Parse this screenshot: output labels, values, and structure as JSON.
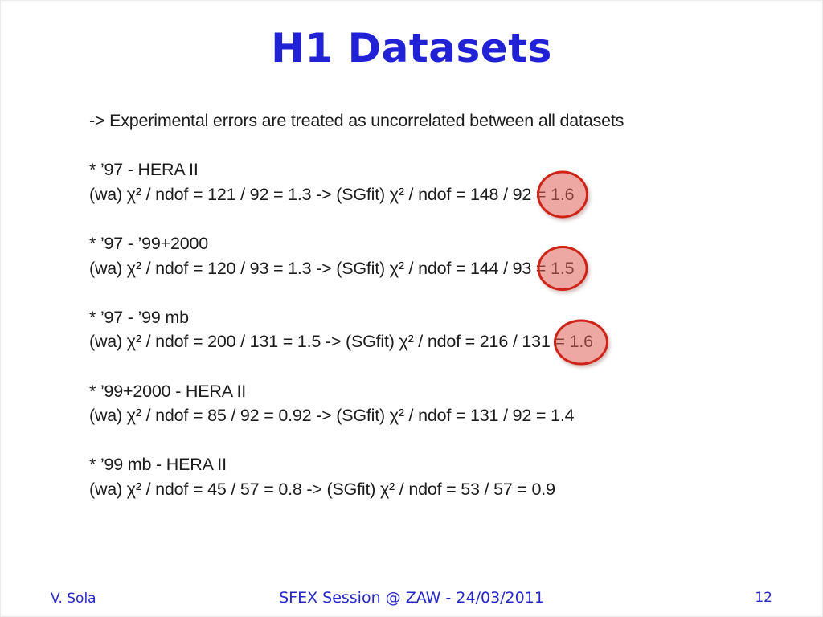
{
  "slide": {
    "title": "H1 Datasets",
    "intro": "-> Experimental errors are treated as uncorrelated between all datasets",
    "blocks": [
      {
        "heading": "* ’97 - HERA II",
        "formula_prefix": "(wa) χ² / ndof = 121 / 92 = 1.3 -> (SGfit) χ² / ndof = 148 / 92 = ",
        "result": "1.6",
        "circled": true
      },
      {
        "heading": "* ’97 - ’99+2000",
        "formula_prefix": "(wa) χ² / ndof = 120 / 93 = 1.3 -> (SGfit) χ² / ndof = 144 / 93 = ",
        "result": "1.5",
        "circled": true
      },
      {
        "heading": "* ’97 - ’99 mb",
        "formula_prefix": "(wa) χ² / ndof = 200 / 131 = 1.5 -> (SGfit) χ² / ndof = 216 / 131 = ",
        "result": "1.6",
        "circled": true
      },
      {
        "heading": "* ’99+2000 - HERA II",
        "formula_prefix": "(wa) χ² / ndof = 85 / 92 = 0.92 -> (SGfit) χ² / ndof = 131 / 92 = ",
        "result": "1.4",
        "circled": false
      },
      {
        "heading": "* ’99 mb - HERA II",
        "formula_prefix": "(wa) χ² / ndof = 45 / 57 = 0.8 -> (SGfit) χ² / ndof = 53 / 57 = ",
        "result": "0.9",
        "circled": false
      }
    ],
    "footer": {
      "author": "V. Sola",
      "session": "SFEX Session @ ZAW - 24/03/2011",
      "page_number": "12"
    },
    "colors": {
      "title_blue": "#2121d6",
      "footer_blue": "#2428c6",
      "body_text": "#1c1c1c",
      "circle_border": "#ce2418",
      "circle_fill": "rgba(224,96,87,0.55)"
    }
  }
}
